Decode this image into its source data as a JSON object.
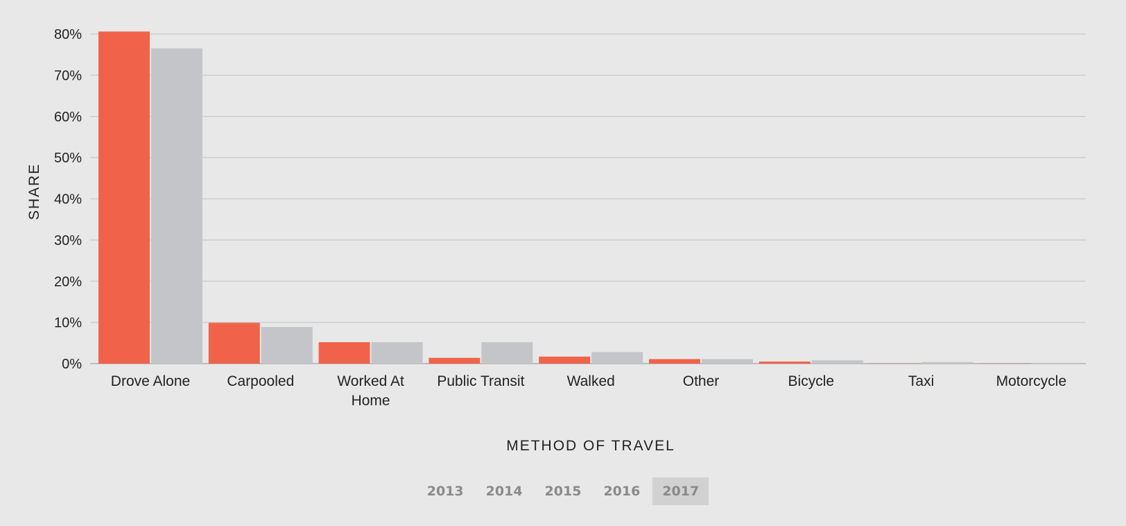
{
  "chart_data": {
    "type": "bar",
    "categories": [
      "Drove Alone",
      "Carpooled",
      "Worked At Home",
      "Public Transit",
      "Walked",
      "Other",
      "Bicycle",
      "Taxi",
      "Motorcycle"
    ],
    "category_lines": [
      [
        "Drove Alone"
      ],
      [
        "Carpooled"
      ],
      [
        "Worked At",
        "Home"
      ],
      [
        "Public Transit"
      ],
      [
        "Walked"
      ],
      [
        "Other"
      ],
      [
        "Bicycle"
      ],
      [
        "Taxi"
      ],
      [
        "Motorcycle"
      ]
    ],
    "series": [
      {
        "values": [
          80.6,
          9.9,
          5.2,
          1.4,
          1.7,
          1.1,
          0.5,
          0.05,
          0.05
        ],
        "color": "#f0634a"
      },
      {
        "values": [
          76.5,
          8.9,
          5.2,
          5.2,
          2.8,
          1.1,
          0.8,
          0.4,
          0.2
        ],
        "color": "#c4c5c9"
      }
    ],
    "xlabel": "METHOD OF TRAVEL",
    "ylabel": "SHARE",
    "ylim": [
      0,
      80
    ],
    "yticks": [
      0,
      10,
      20,
      30,
      40,
      50,
      60,
      70,
      80
    ],
    "ytick_labels": [
      "0%",
      "10%",
      "20%",
      "30%",
      "40%",
      "50%",
      "60%",
      "70%",
      "80%"
    ],
    "grid": true,
    "gridline_color": "#cccccc"
  },
  "year_selector": {
    "years": [
      "2013",
      "2014",
      "2015",
      "2016",
      "2017"
    ],
    "selected": "2017"
  }
}
